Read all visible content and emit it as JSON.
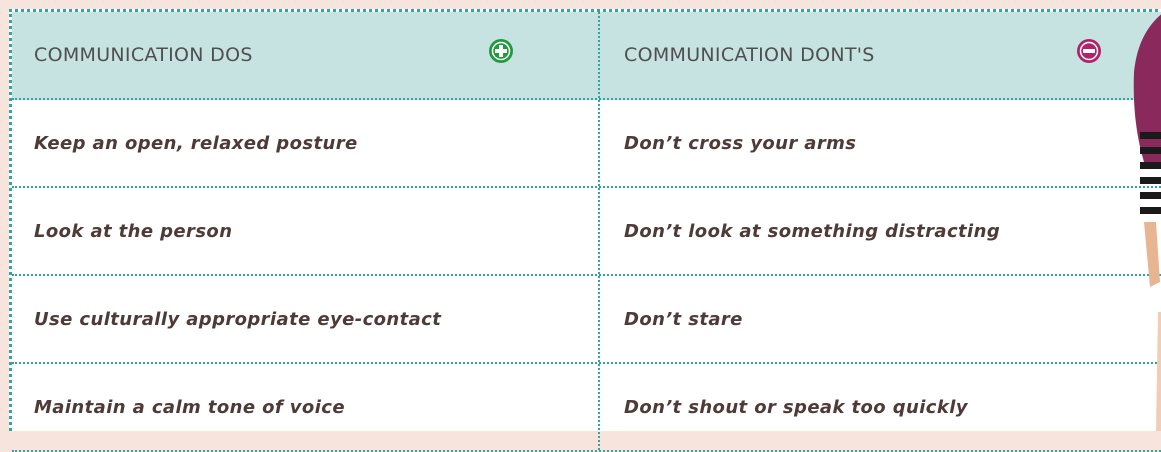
{
  "table": {
    "header": [
      "COMMUNICATION DOS",
      "COMMUNICATION DONT'S"
    ],
    "rows": [
      [
        "Keep an open, relaxed posture",
        "Don’t cross your arms"
      ],
      [
        "Look at the person",
        "Don’t look at something distracting"
      ],
      [
        "Use culturally appropriate eye-contact",
        "Don’t stare"
      ],
      [
        "Maintain a calm tone of voice",
        "Don’t shout or speak too quickly"
      ]
    ]
  }
}
